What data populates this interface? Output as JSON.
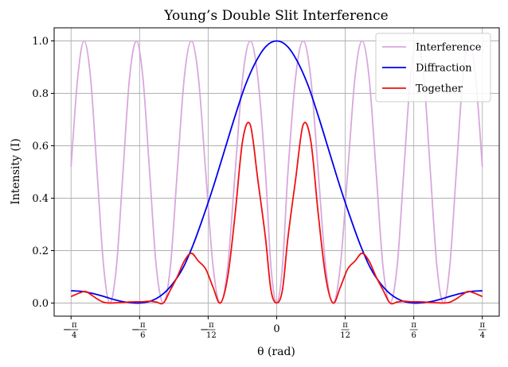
{
  "chart_data": {
    "type": "line",
    "title": "Young’s Double Slit Interference",
    "xlabel": "θ (rad)",
    "ylabel": "Intensity (I)",
    "xlim": [
      -0.85,
      0.85
    ],
    "ylim": [
      -0.05,
      1.05
    ],
    "grid": true,
    "legend_position": "top-right",
    "x_ticks": [
      {
        "value": -0.7854,
        "sign": "−",
        "num": "π",
        "den": "4"
      },
      {
        "value": -0.5236,
        "sign": "−",
        "num": "π",
        "den": "6"
      },
      {
        "value": -0.2618,
        "sign": "−",
        "num": "π",
        "den": "12"
      },
      {
        "value": 0,
        "label": "0"
      },
      {
        "value": 0.2618,
        "sign": "",
        "num": "π",
        "den": "12"
      },
      {
        "value": 0.5236,
        "sign": "",
        "num": "π",
        "den": "6"
      },
      {
        "value": 0.7854,
        "sign": "",
        "num": "π",
        "den": "4"
      }
    ],
    "y_ticks": [
      "0.0",
      "0.2",
      "0.4",
      "0.6",
      "0.8",
      "1.0"
    ],
    "series": [
      {
        "name": "Interference",
        "color": "#d8a8dc",
        "x": [
          -0.7854,
          -0.76,
          -0.7357,
          -0.711,
          -0.686,
          -0.661,
          -0.637,
          -0.612,
          -0.587,
          -0.562,
          -0.536,
          -0.511,
          -0.4853,
          -0.46,
          -0.433,
          -0.406,
          -0.3798,
          -0.353,
          -0.326,
          -0.299,
          -0.2712,
          -0.243,
          -0.215,
          -0.187,
          -0.1587,
          -0.13,
          -0.101,
          -0.072,
          -0.043,
          -0.022,
          0,
          0.022,
          0.043,
          0.072,
          0.101,
          0.13,
          0.1587,
          0.187,
          0.215,
          0.243,
          0.2712,
          0.299,
          0.326,
          0.353,
          0.3798,
          0.406,
          0.433,
          0.46,
          0.4853,
          0.511,
          0.536,
          0.562,
          0.587,
          0.612,
          0.637,
          0.661,
          0.686,
          0.711,
          0.7357,
          0.76,
          0.7854
        ],
        "y": [
          0.52,
          0.86,
          1.0,
          0.86,
          0.5,
          0.14,
          0.0,
          0.14,
          0.5,
          0.86,
          1.0,
          0.86,
          0.5,
          0.14,
          0.0,
          0.14,
          0.5,
          0.86,
          1.0,
          0.86,
          0.5,
          0.14,
          0.0,
          0.14,
          0.5,
          0.86,
          1.0,
          0.86,
          0.5,
          0.14,
          0.0,
          0.14,
          0.5,
          0.86,
          1.0,
          0.86,
          0.5,
          0.14,
          0.0,
          0.14,
          0.5,
          0.86,
          1.0,
          0.86,
          0.5,
          0.14,
          0.0,
          0.14,
          0.5,
          0.86,
          1.0,
          0.86,
          0.5,
          0.14,
          0.0,
          0.14,
          0.5,
          0.86,
          1.0,
          0.86,
          0.52
        ]
      },
      {
        "name": "Diffraction",
        "color": "#0000ee",
        "x": [
          -0.7854,
          -0.74,
          -0.7,
          -0.66,
          -0.62,
          -0.58,
          -0.5236,
          -0.48,
          -0.44,
          -0.4,
          -0.36,
          -0.32,
          -0.28,
          -0.24,
          -0.2,
          -0.16,
          -0.12,
          -0.08,
          -0.04,
          0,
          0.04,
          0.08,
          0.12,
          0.16,
          0.2,
          0.24,
          0.28,
          0.32,
          0.36,
          0.4,
          0.44,
          0.48,
          0.5236,
          0.58,
          0.62,
          0.66,
          0.7,
          0.74,
          0.7854
        ],
        "y": [
          0.047,
          0.044,
          0.036,
          0.025,
          0.013,
          0.004,
          0.0,
          0.008,
          0.03,
          0.07,
          0.13,
          0.22,
          0.33,
          0.45,
          0.58,
          0.71,
          0.83,
          0.92,
          0.98,
          1.0,
          0.98,
          0.92,
          0.83,
          0.71,
          0.58,
          0.45,
          0.33,
          0.22,
          0.13,
          0.07,
          0.03,
          0.008,
          0.0,
          0.004,
          0.013,
          0.025,
          0.036,
          0.044,
          0.047
        ]
      },
      {
        "name": "Together",
        "color": "#ee1111",
        "x": [
          -0.7854,
          -0.7357,
          -0.711,
          -0.686,
          -0.661,
          -0.637,
          -0.612,
          -0.587,
          -0.562,
          -0.536,
          -0.511,
          -0.4853,
          -0.46,
          -0.433,
          -0.406,
          -0.3798,
          -0.353,
          -0.326,
          -0.299,
          -0.2712,
          -0.243,
          -0.215,
          -0.187,
          -0.1587,
          -0.13,
          -0.101,
          -0.072,
          -0.043,
          -0.022,
          0,
          0.022,
          0.043,
          0.072,
          0.101,
          0.13,
          0.1587,
          0.187,
          0.215,
          0.243,
          0.2712,
          0.299,
          0.326,
          0.353,
          0.3798,
          0.406,
          0.433,
          0.46,
          0.4853,
          0.511,
          0.536,
          0.562,
          0.587,
          0.612,
          0.637,
          0.661,
          0.686,
          0.711,
          0.7357,
          0.7854
        ],
        "y": [
          0.025,
          0.044,
          0.033,
          0.016,
          0.003,
          0.0,
          0.001,
          0.002,
          0.004,
          0.005,
          0.005,
          0.007,
          0.004,
          0.0,
          0.05,
          0.1,
          0.16,
          0.19,
          0.16,
          0.13,
          0.06,
          0.0,
          0.1,
          0.34,
          0.62,
          0.68,
          0.47,
          0.25,
          0.05,
          0.0,
          0.05,
          0.25,
          0.47,
          0.68,
          0.62,
          0.34,
          0.1,
          0.0,
          0.06,
          0.13,
          0.16,
          0.19,
          0.16,
          0.1,
          0.05,
          0.0,
          0.004,
          0.007,
          0.005,
          0.005,
          0.004,
          0.002,
          0.001,
          0.0,
          0.003,
          0.016,
          0.033,
          0.044,
          0.025
        ]
      }
    ]
  }
}
